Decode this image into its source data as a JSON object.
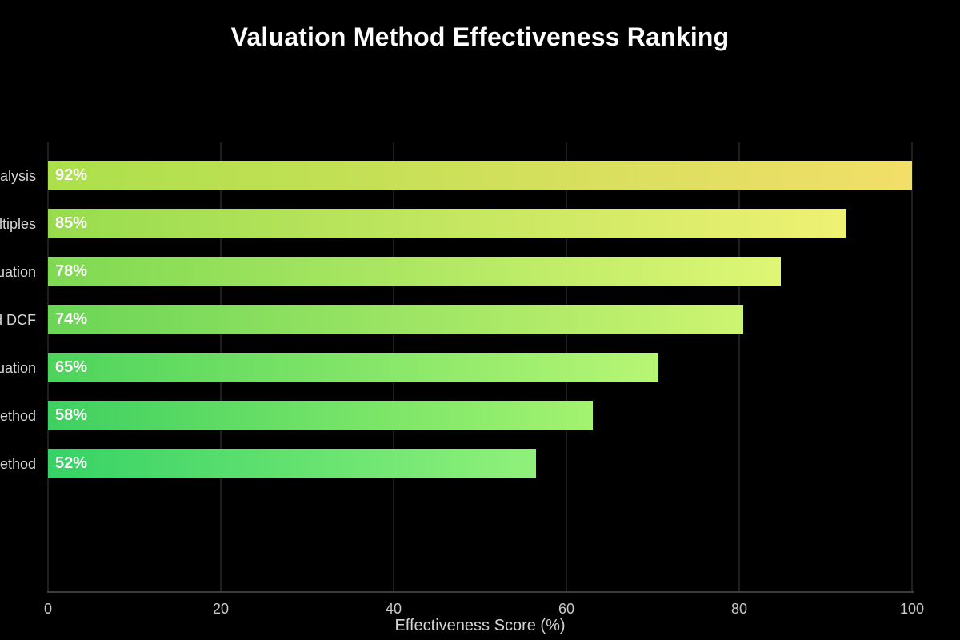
{
  "chart_data": {
    "type": "bar",
    "orientation": "horizontal",
    "title": "Valuation Method Effectiveness Ranking",
    "xlabel": "Effectiveness Score (%)",
    "xlim": [
      0,
      100
    ],
    "x_ticks": [
      "0",
      "20",
      "40",
      "60",
      "80",
      "100"
    ],
    "x_tick_values": [
      0,
      20,
      40,
      60,
      80,
      100
    ],
    "grid": true,
    "legend": "none",
    "background": "#000000",
    "bars_scaled_to_max_value": true,
    "categories": [
      "alysis",
      "ltiples",
      "uation",
      "d DCF",
      "uation",
      "ethod",
      "ethod"
    ],
    "values": [
      92,
      85,
      78,
      74,
      65,
      58,
      52
    ],
    "value_labels": [
      "92%",
      "85%",
      "78%",
      "74%",
      "65%",
      "58%",
      "52%"
    ],
    "bar_colors": [
      {
        "start": "#abe04b",
        "end": "#f2df68"
      },
      {
        "start": "#98dc4e",
        "end": "#eff173"
      },
      {
        "start": "#7ed952",
        "end": "#dff674"
      },
      {
        "start": "#6ad556",
        "end": "#cdf471"
      },
      {
        "start": "#4cd45c",
        "end": "#b8f674"
      },
      {
        "start": "#3ed060",
        "end": "#a3f36f"
      },
      {
        "start": "#36d266",
        "end": "#90f17a"
      }
    ],
    "colors": {
      "title_text": "#ffffff",
      "tick_text": "#c9c9c9",
      "category_text": "#d5d5d5",
      "axis_line": "#3c3c3c",
      "gridline": "#1f1f1f",
      "value_text": "#ffffff"
    }
  }
}
